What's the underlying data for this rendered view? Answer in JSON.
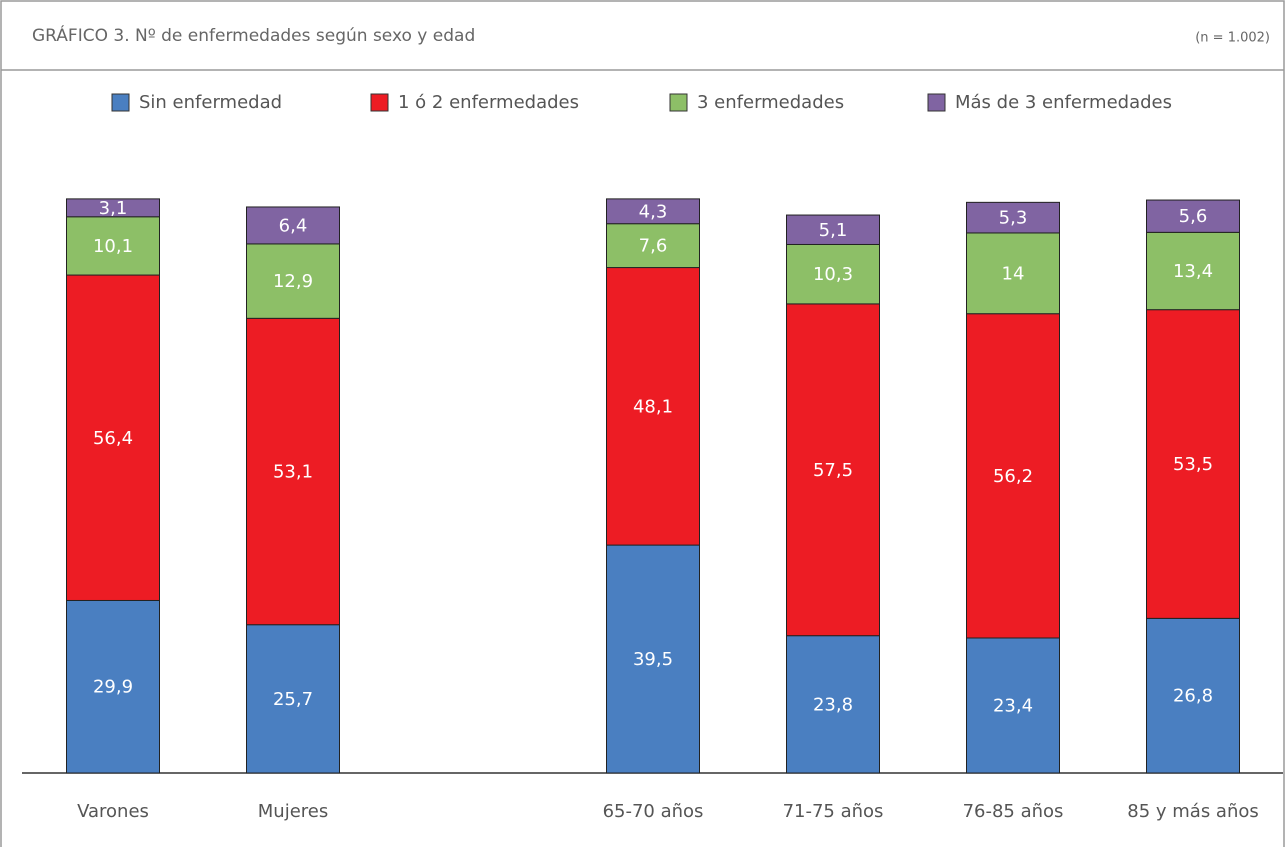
{
  "chart_data": {
    "type": "stacked_bar",
    "title": "GRÁFICO 3. Nº de enfermedades según sexo y edad",
    "subtitle": "(n = 1.002)",
    "categories": [
      "Varones",
      "Mujeres",
      null,
      "65-70 años",
      "71-75 años",
      "76-85 años",
      "85 y más años"
    ],
    "ylim": [
      0,
      100
    ],
    "series": [
      {
        "name": "Sin enfermedad",
        "color": "#4a7fc1",
        "values": [
          29.9,
          25.7,
          null,
          39.5,
          23.8,
          23.4,
          26.8
        ],
        "value_labels": [
          "29,9",
          "25,7",
          null,
          "39,5",
          "23,8",
          "23,4",
          "26,8"
        ]
      },
      {
        "name": "1 ó 2 enfermedades",
        "color": "#ed1c24",
        "values": [
          56.4,
          53.1,
          null,
          48.1,
          57.5,
          56.2,
          53.5
        ],
        "value_labels": [
          "56,4",
          "53,1",
          null,
          "48,1",
          "57,5",
          "56,2",
          "53,5"
        ]
      },
      {
        "name": "3 enfermedades",
        "color": "#8dbf67",
        "values": [
          10.1,
          12.9,
          null,
          7.6,
          10.3,
          14,
          13.4
        ],
        "value_labels": [
          "10,1",
          "12,9",
          null,
          "7,6",
          "10,3",
          "14",
          "13,4"
        ]
      },
      {
        "name": "Más de 3 enfermedades",
        "color": "#8064a2",
        "values": [
          3.1,
          6.4,
          null,
          4.3,
          5.1,
          5.3,
          5.6
        ],
        "value_labels": [
          "3,1",
          "6,4",
          null,
          "4,3",
          "5,1",
          "5,3",
          "5,6"
        ]
      }
    ]
  }
}
